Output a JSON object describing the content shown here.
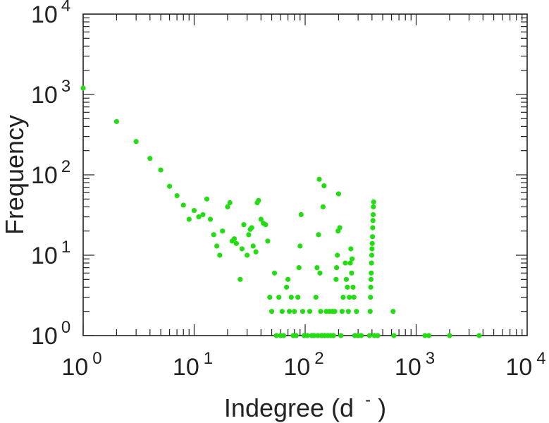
{
  "chart_data": {
    "type": "scatter",
    "xlabel": "Indegree (d",
    "xlabel_superscript": "-",
    "xlabel_close": ")",
    "ylabel": "Frequency",
    "xscale": "log",
    "yscale": "log",
    "xlim": [
      1,
      10000
    ],
    "ylim": [
      1,
      10000
    ],
    "x_tick_labels": [
      {
        "value": 1,
        "base": "10",
        "exp": "0"
      },
      {
        "value": 10,
        "base": "10",
        "exp": "1"
      },
      {
        "value": 100,
        "base": "10",
        "exp": "2"
      },
      {
        "value": 1000,
        "base": "10",
        "exp": "3"
      },
      {
        "value": 10000,
        "base": "10",
        "exp": "4"
      }
    ],
    "y_tick_labels": [
      {
        "value": 1,
        "base": "10",
        "exp": "0"
      },
      {
        "value": 10,
        "base": "10",
        "exp": "1"
      },
      {
        "value": 100,
        "base": "10",
        "exp": "2"
      },
      {
        "value": 1000,
        "base": "10",
        "exp": "3"
      },
      {
        "value": 10000,
        "base": "10",
        "exp": "4"
      }
    ],
    "grid": false,
    "marker_color": "#22dd11",
    "points": [
      [
        1,
        1200
      ],
      [
        2,
        460
      ],
      [
        3,
        260
      ],
      [
        4,
        160
      ],
      [
        5,
        115
      ],
      [
        6,
        72
      ],
      [
        7,
        55
      ],
      [
        8,
        42
      ],
      [
        9,
        28
      ],
      [
        10,
        36
      ],
      [
        11,
        30
      ],
      [
        12,
        32
      ],
      [
        13,
        50
      ],
      [
        14,
        28
      ],
      [
        15,
        18
      ],
      [
        16,
        13
      ],
      [
        17,
        10
      ],
      [
        18,
        20
      ],
      [
        20,
        40
      ],
      [
        21,
        45
      ],
      [
        22,
        15
      ],
      [
        23,
        16
      ],
      [
        24,
        14
      ],
      [
        26,
        5
      ],
      [
        27,
        12
      ],
      [
        28,
        24
      ],
      [
        30,
        10
      ],
      [
        31,
        18
      ],
      [
        32,
        21
      ],
      [
        33,
        22
      ],
      [
        34,
        13
      ],
      [
        36,
        11
      ],
      [
        37,
        45
      ],
      [
        38,
        48
      ],
      [
        40,
        28
      ],
      [
        42,
        25
      ],
      [
        44,
        24
      ],
      [
        46,
        15
      ],
      [
        48,
        3
      ],
      [
        50,
        2
      ],
      [
        53,
        6
      ],
      [
        55,
        1
      ],
      [
        58,
        3
      ],
      [
        60,
        1
      ],
      [
        62,
        2
      ],
      [
        64,
        1
      ],
      [
        68,
        4
      ],
      [
        70,
        5
      ],
      [
        72,
        2
      ],
      [
        75,
        3
      ],
      [
        78,
        1
      ],
      [
        80,
        2
      ],
      [
        83,
        1
      ],
      [
        86,
        3
      ],
      [
        88,
        7
      ],
      [
        90,
        13
      ],
      [
        92,
        32
      ],
      [
        95,
        2
      ],
      [
        98,
        1
      ],
      [
        105,
        1
      ],
      [
        110,
        2
      ],
      [
        115,
        1
      ],
      [
        120,
        1
      ],
      [
        125,
        3
      ],
      [
        128,
        7
      ],
      [
        130,
        1
      ],
      [
        132,
        18
      ],
      [
        134,
        88
      ],
      [
        136,
        6
      ],
      [
        138,
        2
      ],
      [
        140,
        1
      ],
      [
        142,
        1
      ],
      [
        145,
        40
      ],
      [
        148,
        73
      ],
      [
        150,
        1
      ],
      [
        155,
        2
      ],
      [
        160,
        1
      ],
      [
        165,
        2
      ],
      [
        170,
        1
      ],
      [
        175,
        2
      ],
      [
        180,
        1
      ],
      [
        185,
        2
      ],
      [
        190,
        5
      ],
      [
        192,
        7
      ],
      [
        195,
        10
      ],
      [
        198,
        20
      ],
      [
        200,
        58
      ],
      [
        205,
        22
      ],
      [
        210,
        1
      ],
      [
        215,
        2
      ],
      [
        220,
        3
      ],
      [
        230,
        8
      ],
      [
        235,
        5
      ],
      [
        240,
        4
      ],
      [
        245,
        2
      ],
      [
        250,
        3
      ],
      [
        255,
        8
      ],
      [
        258,
        12
      ],
      [
        262,
        6
      ],
      [
        265,
        9
      ],
      [
        270,
        4
      ],
      [
        275,
        3
      ],
      [
        280,
        1
      ],
      [
        290,
        2
      ],
      [
        300,
        1
      ],
      [
        320,
        1
      ],
      [
        380,
        1
      ],
      [
        385,
        2
      ],
      [
        388,
        3
      ],
      [
        390,
        4
      ],
      [
        392,
        5
      ],
      [
        394,
        6
      ],
      [
        396,
        8
      ],
      [
        398,
        10
      ],
      [
        400,
        12
      ],
      [
        402,
        14
      ],
      [
        404,
        17
      ],
      [
        406,
        22
      ],
      [
        408,
        27
      ],
      [
        410,
        32
      ],
      [
        412,
        40
      ],
      [
        414,
        46
      ],
      [
        420,
        1
      ],
      [
        450,
        1
      ],
      [
        620,
        2
      ],
      [
        630,
        1
      ],
      [
        1200,
        1
      ],
      [
        1300,
        1
      ],
      [
        2000,
        1
      ],
      [
        3700,
        1
      ]
    ]
  }
}
